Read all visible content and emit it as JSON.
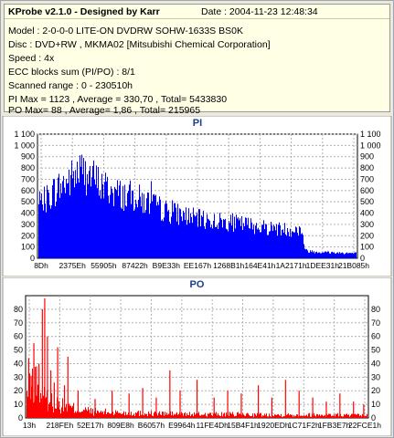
{
  "header": {
    "title": "KProbe v2.1.0 - Designed by Karr",
    "date": "Date : 2004-11-23 12:48:34",
    "model": "Model : 2-0-0-0 LITE-ON DVDRW SOHW-1633S BS0K",
    "disc": "Disc : DVD+RW , MKMA02 [Mitsubishi Chemical Corporation]",
    "speed": "Speed : 4x",
    "ecc": "ECC blocks sum (PI/PO) : 8/1",
    "range": "Scanned range : 0 - 230510h",
    "pi_stats": "PI Max = 1123 , Average = 330,70 , Total= 5433830",
    "po_stats": "PO Max= 88 , Average= 1,86 , Total= 215965"
  },
  "chart_data": [
    {
      "type": "bar",
      "title": "PI",
      "color": "#0000ff",
      "ylim": [
        0,
        1100
      ],
      "y_ticks": [
        "0",
        "100",
        "200",
        "300",
        "400",
        "500",
        "600",
        "700",
        "800",
        "900",
        "1 000",
        "1 100"
      ],
      "x_ticks": [
        "8Dh",
        "2375Eh",
        "55905h",
        "87422h",
        "B9E33h",
        "EE167h",
        "1268B1h",
        "164E41h",
        "1A2171h",
        "1DEE31h",
        "21B085h"
      ],
      "x_range_hex": [
        "0",
        "230510"
      ],
      "profile": {
        "positions": [
          0.0,
          0.05,
          0.1,
          0.13,
          0.16,
          0.2,
          0.25,
          0.3,
          0.35,
          0.4,
          0.45,
          0.5,
          0.55,
          0.6,
          0.65,
          0.7,
          0.75,
          0.8,
          0.83,
          0.84,
          0.87,
          0.9,
          0.95,
          1.0
        ],
        "levels": [
          470,
          620,
          720,
          800,
          760,
          660,
          590,
          560,
          500,
          430,
          400,
          360,
          340,
          330,
          310,
          290,
          270,
          260,
          255,
          70,
          60,
          55,
          50,
          45
        ]
      },
      "max": 1123,
      "average": 330.7
    },
    {
      "type": "bar",
      "title": "PO",
      "color": "#ff0000",
      "ylim": [
        0,
        90
      ],
      "y_ticks": [
        "0",
        "10",
        "20",
        "30",
        "40",
        "50",
        "60",
        "70",
        "80"
      ],
      "x_ticks": [
        "13h",
        "218FEh",
        "52E17h",
        "809E8h",
        "B6057h",
        "E9964h",
        "11FE4Dh",
        "15B4F1h",
        "1920EDh",
        "1C71F2h",
        "1FB3E7h",
        "22FCE1h"
      ],
      "x_range_hex": [
        "0",
        "230510"
      ],
      "profile": {
        "positions": [
          0.0,
          0.02,
          0.05,
          0.1,
          0.15,
          0.2,
          0.3,
          0.4,
          0.5,
          0.6,
          0.7,
          0.8,
          0.9,
          1.0
        ],
        "levels": [
          18,
          28,
          16,
          10,
          7,
          5,
          4,
          3.5,
          3,
          3,
          2.5,
          2.5,
          2.5,
          2
        ]
      },
      "spikes": [
        [
          0.005,
          44
        ],
        [
          0.012,
          31
        ],
        [
          0.02,
          55
        ],
        [
          0.028,
          38
        ],
        [
          0.035,
          40
        ],
        [
          0.045,
          80
        ],
        [
          0.052,
          88
        ],
        [
          0.06,
          60
        ],
        [
          0.07,
          35
        ],
        [
          0.08,
          26
        ],
        [
          0.09,
          52
        ],
        [
          0.11,
          24
        ],
        [
          0.12,
          45
        ],
        [
          0.15,
          20
        ],
        [
          0.2,
          14
        ],
        [
          0.25,
          20
        ],
        [
          0.3,
          18
        ],
        [
          0.34,
          22
        ],
        [
          0.38,
          15
        ],
        [
          0.42,
          35
        ],
        [
          0.45,
          20
        ],
        [
          0.5,
          28
        ],
        [
          0.55,
          15
        ],
        [
          0.59,
          20
        ],
        [
          0.63,
          18
        ],
        [
          0.68,
          24
        ],
        [
          0.72,
          15
        ],
        [
          0.76,
          28
        ],
        [
          0.8,
          20
        ],
        [
          0.84,
          15
        ],
        [
          0.88,
          12
        ],
        [
          0.92,
          18
        ],
        [
          0.96,
          12
        ],
        [
          0.99,
          10
        ]
      ],
      "max": 88,
      "average": 1.86
    }
  ]
}
